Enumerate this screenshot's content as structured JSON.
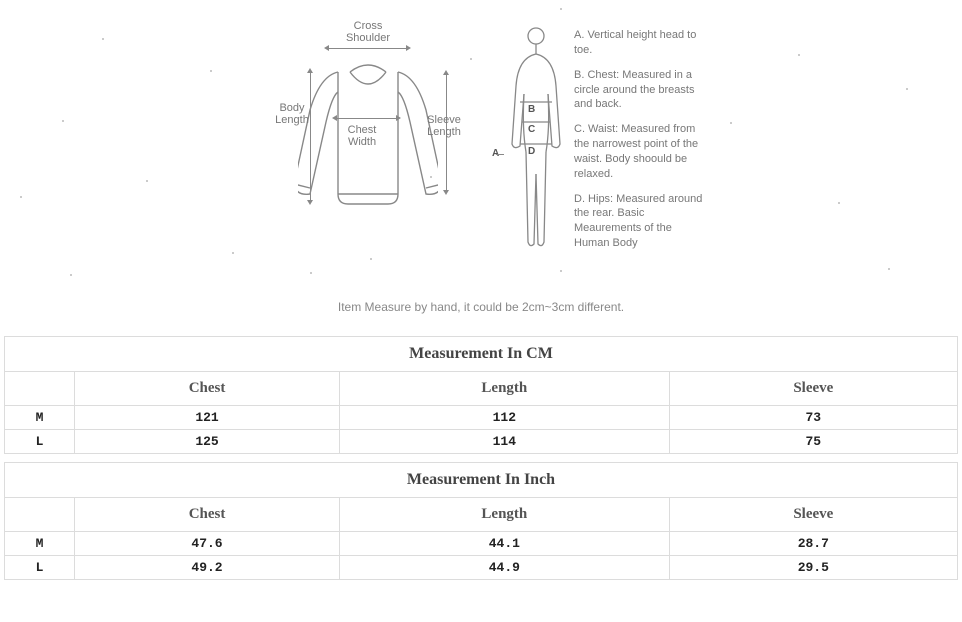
{
  "diagram": {
    "shirt_labels": {
      "cross_shoulder": "Cross\nShoulder",
      "body_length": "Body\nLength",
      "chest_width": "Chest\nWidth",
      "sleeve_length": "Sleeve\nLength"
    },
    "body_markers": {
      "a": "A",
      "b": "B",
      "c": "C",
      "d": "D"
    },
    "definitions": [
      "A. Vertical height head to toe.",
      "B. Chest: Measured in a circle around the breasts and back.",
      "C. Waist: Measured from the narrowest point of the waist. Body shoould be relaxed.",
      "D. Hips: Measured around the rear. Basic Meaurements of the Human Body"
    ],
    "note": "Item Measure by hand, it could be 2cm~3cm different.",
    "line_color": "#888888",
    "text_color": "#777777"
  },
  "tables": {
    "border_color": "#dcdcdc",
    "title_fontsize": 16,
    "header_fontsize": 15,
    "data_fontsize": 13,
    "cm": {
      "title": "Measurement In CM",
      "columns": [
        "",
        "Chest",
        "Length",
        "Sleeve"
      ],
      "rows": [
        [
          "M",
          "121",
          "112",
          "73"
        ],
        [
          "L",
          "125",
          "114",
          "75"
        ]
      ]
    },
    "inch": {
      "title": "Measurement In Inch",
      "columns": [
        "",
        "Chest",
        "Length",
        "Sleeve"
      ],
      "rows": [
        [
          "M",
          "47.6",
          "44.1",
          "28.7"
        ],
        [
          "L",
          "49.2",
          "44.9",
          "29.5"
        ]
      ]
    }
  },
  "background_color": "#ffffff"
}
